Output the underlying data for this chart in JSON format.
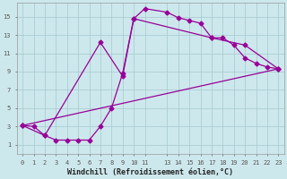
{
  "xlabel": "Windchill (Refroidissement éolien,°C)",
  "bg_color": "#cde8ec",
  "grid_color": "#aacdd4",
  "line_color": "#990099",
  "xlim": [
    -0.5,
    23.5
  ],
  "ylim": [
    0,
    16.5
  ],
  "xticks": [
    0,
    1,
    2,
    3,
    4,
    5,
    6,
    7,
    8,
    9,
    10,
    11,
    13,
    14,
    15,
    16,
    17,
    18,
    19,
    20,
    21,
    22,
    23
  ],
  "yticks": [
    1,
    3,
    5,
    7,
    9,
    11,
    13,
    15
  ],
  "series1_x": [
    0,
    1,
    2,
    3,
    4,
    5,
    6,
    7,
    8,
    9,
    10,
    11,
    13,
    14,
    15,
    16,
    17,
    18,
    19,
    20,
    21,
    22,
    23
  ],
  "series1_y": [
    3.1,
    3.0,
    2.0,
    1.5,
    1.5,
    1.5,
    1.5,
    3.0,
    5.0,
    8.8,
    14.8,
    15.9,
    15.5,
    14.9,
    14.6,
    14.3,
    12.7,
    12.7,
    11.9,
    10.5,
    9.9,
    9.5,
    9.3
  ],
  "series2_x": [
    0,
    2,
    7,
    9,
    10,
    17,
    20,
    23
  ],
  "series2_y": [
    3.1,
    2.0,
    12.2,
    8.5,
    14.8,
    12.7,
    11.9,
    9.3
  ],
  "series3_x": [
    0,
    23
  ],
  "series3_y": [
    3.1,
    9.3
  ],
  "marker": "D",
  "marker_size": 2.5,
  "linewidth": 0.9,
  "tick_fontsize": 5.0,
  "label_fontsize": 6.0
}
